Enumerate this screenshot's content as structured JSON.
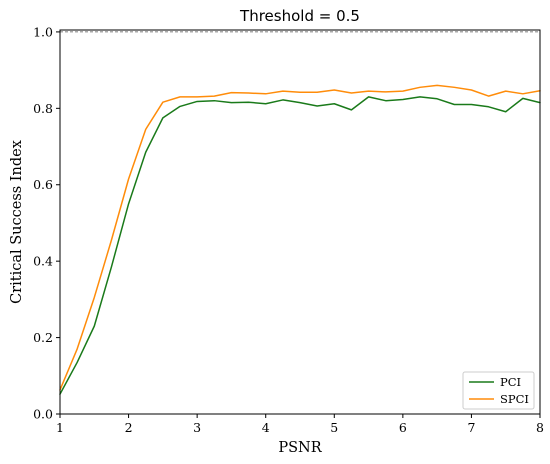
{
  "chart_data": {
    "type": "line",
    "title": "Threshold = 0.5",
    "xlabel": "PSNR",
    "ylabel": "Critical Success Index",
    "xlim": [
      1,
      8
    ],
    "ylim": [
      0,
      1.005
    ],
    "xticks": [
      1,
      2,
      3,
      4,
      5,
      6,
      7,
      8
    ],
    "xtick_labels": [
      "1",
      "2",
      "3",
      "4",
      "5",
      "6",
      "7",
      "8"
    ],
    "yticks": [
      0.0,
      0.2,
      0.4,
      0.6,
      0.8,
      1.0
    ],
    "ytick_labels": [
      "0.0",
      "0.2",
      "0.4",
      "0.6",
      "0.8",
      "1.0"
    ],
    "reference_line": {
      "y": 1.0,
      "style": "dashed",
      "color": "#555555"
    },
    "grid": false,
    "legend_position": "lower-right",
    "x": [
      1.0,
      1.25,
      1.5,
      1.75,
      2.0,
      2.25,
      2.5,
      2.75,
      3.0,
      3.25,
      3.5,
      3.75,
      4.0,
      4.25,
      4.5,
      4.75,
      5.0,
      5.25,
      5.5,
      5.75,
      6.0,
      6.25,
      6.5,
      6.75,
      7.0,
      7.25,
      7.5,
      7.75,
      8.0
    ],
    "series": [
      {
        "name": "PCI",
        "color": "#1a7a1a",
        "values": [
          0.052,
          0.135,
          0.23,
          0.385,
          0.55,
          0.685,
          0.775,
          0.805,
          0.818,
          0.82,
          0.815,
          0.816,
          0.812,
          0.822,
          0.815,
          0.806,
          0.812,
          0.796,
          0.83,
          0.82,
          0.823,
          0.83,
          0.825,
          0.81,
          0.81,
          0.804,
          0.791,
          0.826,
          0.815
        ]
      },
      {
        "name": "SPCI",
        "color": "#ff8c0a",
        "values": [
          0.063,
          0.17,
          0.305,
          0.455,
          0.615,
          0.745,
          0.816,
          0.83,
          0.83,
          0.832,
          0.841,
          0.84,
          0.838,
          0.845,
          0.842,
          0.842,
          0.848,
          0.84,
          0.845,
          0.843,
          0.845,
          0.855,
          0.86,
          0.855,
          0.848,
          0.832,
          0.845,
          0.838,
          0.846
        ]
      }
    ]
  }
}
